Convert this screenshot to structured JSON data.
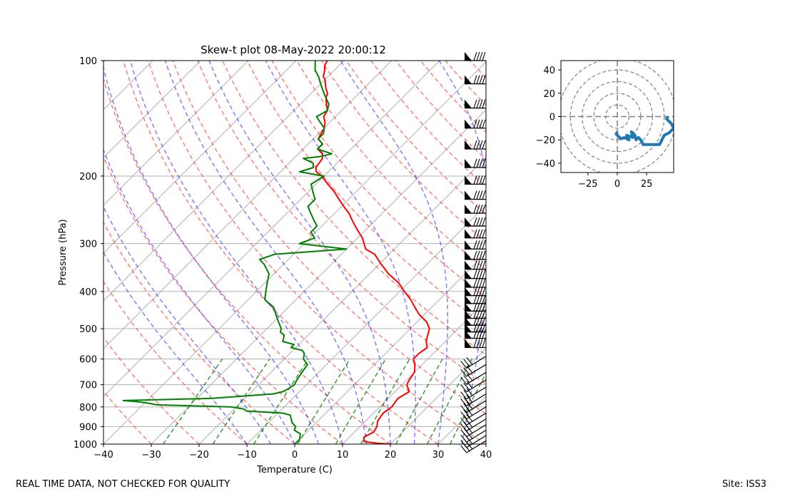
{
  "footer": {
    "quality_note": "REAL TIME DATA, NOT CHECKED FOR QUALITY",
    "site": "Site: ISS3"
  },
  "chart_data": [
    {
      "type": "skew-t",
      "title": "Skew-t plot 08-May-2022 20:00:12",
      "xlabel": "Temperature (C)",
      "ylabel": "Pressure (hPa)",
      "xlim": [
        -40,
        40
      ],
      "ylim": [
        1000,
        100
      ],
      "y_scale": "log",
      "grid": true,
      "x_ticks": [
        -40,
        -30,
        -20,
        -10,
        0,
        10,
        20,
        30,
        40
      ],
      "y_ticks": [
        100,
        200,
        300,
        400,
        500,
        600,
        700,
        800,
        900,
        1000
      ],
      "series": [
        {
          "color": "#ff0000",
          "description": "temperature",
          "points": [
            [
              1000,
              20
            ],
            [
              995,
              17
            ],
            [
              985,
              14
            ],
            [
              960,
              13
            ],
            [
              930,
              14
            ],
            [
              900,
              13.5
            ],
            [
              870,
              12.5
            ],
            [
              830,
              12
            ],
            [
              800,
              12.5
            ],
            [
              760,
              12
            ],
            [
              730,
              13
            ],
            [
              700,
              11
            ],
            [
              680,
              10.5
            ],
            [
              650,
              10
            ],
            [
              620,
              8.5
            ],
            [
              600,
              7
            ],
            [
              580,
              7
            ],
            [
              560,
              7.5
            ],
            [
              540,
              6
            ],
            [
              520,
              5
            ],
            [
              500,
              4
            ],
            [
              480,
              2
            ],
            [
              460,
              -1
            ],
            [
              440,
              -3.5
            ],
            [
              420,
              -6
            ],
            [
              400,
              -9
            ],
            [
              380,
              -12
            ],
            [
              360,
              -16
            ],
            [
              340,
              -19.5
            ],
            [
              320,
              -23
            ],
            [
              310,
              -26
            ],
            [
              300,
              -27.5
            ],
            [
              290,
              -29
            ],
            [
              280,
              -31
            ],
            [
              270,
              -33
            ],
            [
              260,
              -35
            ],
            [
              250,
              -37
            ],
            [
              240,
              -39.5
            ],
            [
              230,
              -42
            ],
            [
              220,
              -44.5
            ],
            [
              210,
              -47.5
            ],
            [
              200,
              -50.5
            ],
            [
              195,
              -52.5
            ],
            [
              190,
              -53.5
            ],
            [
              180,
              -54
            ],
            [
              175,
              -55
            ],
            [
              170,
              -57
            ],
            [
              165,
              -57
            ],
            [
              160,
              -59
            ],
            [
              155,
              -59.5
            ],
            [
              150,
              -60
            ],
            [
              145,
              -61
            ],
            [
              140,
              -62.5
            ],
            [
              135,
              -63
            ],
            [
              130,
              -64.5
            ],
            [
              125,
              -66
            ],
            [
              122,
              -66.5
            ],
            [
              118,
              -68
            ],
            [
              115,
              -69
            ],
            [
              112,
              -70
            ],
            [
              110,
              -71
            ],
            [
              106,
              -72
            ],
            [
              103,
              -73
            ],
            [
              100,
              -73.5
            ]
          ]
        },
        {
          "color": "#008000",
          "description": "dewpoint",
          "points": [
            [
              1000,
              0
            ],
            [
              970,
              0
            ],
            [
              940,
              -1
            ],
            [
              920,
              -3
            ],
            [
              900,
              -3.5
            ],
            [
              880,
              -5
            ],
            [
              860,
              -6
            ],
            [
              840,
              -7
            ],
            [
              830,
              -9
            ],
            [
              820,
              -17
            ],
            [
              810,
              -18
            ],
            [
              800,
              -21
            ],
            [
              790,
              -37
            ],
            [
              780,
              -40
            ],
            [
              775,
              -42
            ],
            [
              770,
              -45
            ],
            [
              760,
              -27
            ],
            [
              740,
              -15
            ],
            [
              730,
              -13.5
            ],
            [
              720,
              -13
            ],
            [
              700,
              -12.5
            ],
            [
              680,
              -13
            ],
            [
              650,
              -13.5
            ],
            [
              620,
              -14
            ],
            [
              600,
              -16
            ],
            [
              580,
              -17
            ],
            [
              570,
              -18
            ],
            [
              560,
              -21
            ],
            [
              550,
              -21
            ],
            [
              540,
              -24
            ],
            [
              520,
              -25
            ],
            [
              510,
              -26.5
            ],
            [
              500,
              -27
            ],
            [
              480,
              -29
            ],
            [
              460,
              -31
            ],
            [
              440,
              -33
            ],
            [
              420,
              -36.5
            ],
            [
              400,
              -38
            ],
            [
              380,
              -39.5
            ],
            [
              360,
              -41
            ],
            [
              340,
              -44
            ],
            [
              330,
              -46
            ],
            [
              320,
              -44
            ],
            [
              310,
              -30
            ],
            [
              300,
              -41
            ],
            [
              295,
              -40
            ],
            [
              290,
              -39
            ],
            [
              280,
              -41
            ],
            [
              270,
              -41
            ],
            [
              260,
              -43
            ],
            [
              250,
              -45
            ],
            [
              240,
              -47
            ],
            [
              230,
              -47
            ],
            [
              220,
              -49
            ],
            [
              210,
              -51
            ],
            [
              200,
              -50
            ],
            [
              195,
              -56
            ],
            [
              190,
              -54
            ],
            [
              185,
              -55
            ],
            [
              180,
              -58
            ],
            [
              178,
              -55
            ],
            [
              175,
              -53
            ],
            [
              170,
              -57
            ],
            [
              165,
              -57
            ],
            [
              160,
              -59
            ],
            [
              155,
              -59
            ],
            [
              150,
              -60
            ],
            [
              145,
              -62
            ],
            [
              140,
              -64
            ],
            [
              135,
              -63
            ],
            [
              130,
              -64
            ],
            [
              125,
              -66
            ],
            [
              120,
              -68
            ],
            [
              115,
              -70
            ],
            [
              110,
              -72
            ],
            [
              106,
              -74
            ],
            [
              103,
              -75
            ],
            [
              100,
              -76
            ]
          ]
        }
      ],
      "wind_barbs": [
        {
          "p": 100,
          "kind": "pennant"
        },
        {
          "p": 115,
          "kind": "pennant"
        },
        {
          "p": 133,
          "kind": "pennant"
        },
        {
          "p": 150,
          "kind": "pennant"
        },
        {
          "p": 170,
          "kind": "pennant"
        },
        {
          "p": 190,
          "kind": "pennant"
        },
        {
          "p": 210,
          "kind": "pennant"
        },
        {
          "p": 230,
          "kind": "pennant"
        },
        {
          "p": 250,
          "kind": "pennant"
        },
        {
          "p": 270,
          "kind": "pennant"
        },
        {
          "p": 290,
          "kind": "pennant"
        },
        {
          "p": 310,
          "kind": "pennant"
        },
        {
          "p": 330,
          "kind": "pennant"
        },
        {
          "p": 350,
          "kind": "pennant"
        },
        {
          "p": 370,
          "kind": "pennant"
        },
        {
          "p": 390,
          "kind": "pennant"
        },
        {
          "p": 410,
          "kind": "pennant"
        },
        {
          "p": 430,
          "kind": "pennant"
        },
        {
          "p": 450,
          "kind": "pennant"
        },
        {
          "p": 470,
          "kind": "pennant"
        },
        {
          "p": 490,
          "kind": "pennant"
        },
        {
          "p": 510,
          "kind": "pennant"
        },
        {
          "p": 530,
          "kind": "pennant"
        },
        {
          "p": 560,
          "kind": "pennant"
        },
        {
          "p": 590,
          "kind": "barb"
        },
        {
          "p": 620,
          "kind": "barb"
        },
        {
          "p": 650,
          "kind": "barb"
        },
        {
          "p": 680,
          "kind": "barb"
        },
        {
          "p": 710,
          "kind": "barb"
        },
        {
          "p": 740,
          "kind": "barb"
        },
        {
          "p": 770,
          "kind": "barb"
        },
        {
          "p": 800,
          "kind": "barb"
        },
        {
          "p": 830,
          "kind": "barb"
        },
        {
          "p": 860,
          "kind": "barb"
        },
        {
          "p": 890,
          "kind": "barb"
        },
        {
          "p": 920,
          "kind": "barb"
        },
        {
          "p": 950,
          "kind": "barb"
        },
        {
          "p": 980,
          "kind": "barb"
        }
      ]
    },
    {
      "type": "hodograph",
      "xlim": [
        -48,
        48
      ],
      "ylim": [
        -48,
        48
      ],
      "x_ticks": [
        -25,
        0,
        25
      ],
      "y_ticks": [
        40,
        20,
        0,
        -20,
        -40
      ],
      "rings": [
        10,
        20,
        30,
        40,
        50
      ],
      "line_color": "#1f77b4",
      "points": [
        [
          0,
          -13
        ],
        [
          -1,
          -15
        ],
        [
          1,
          -17
        ],
        [
          3,
          -19
        ],
        [
          6,
          -18
        ],
        [
          10,
          -20
        ],
        [
          8,
          -16
        ],
        [
          13,
          -18
        ],
        [
          12,
          -13
        ],
        [
          15,
          -16
        ],
        [
          16,
          -20
        ],
        [
          18,
          -18
        ],
        [
          20,
          -20
        ],
        [
          22,
          -24
        ],
        [
          28,
          -24
        ],
        [
          36,
          -24
        ],
        [
          38,
          -20
        ],
        [
          40,
          -16
        ],
        [
          44,
          -14
        ],
        [
          48,
          -10
        ],
        [
          46,
          -6
        ],
        [
          42,
          -2
        ],
        [
          43,
          0
        ]
      ]
    }
  ]
}
